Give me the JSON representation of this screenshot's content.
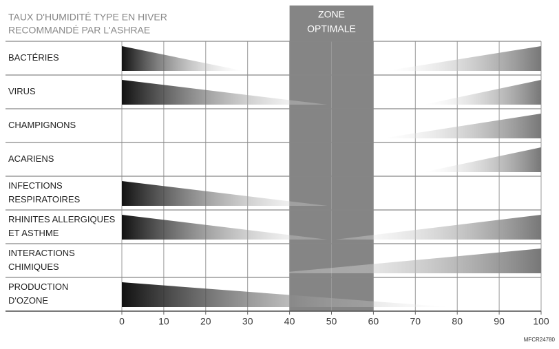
{
  "chart_data": {
    "type": "wedge",
    "title": [
      "TAUX D'HUMIDITÉ TYPE EN HIVER",
      "RECOMMANDÉ PAR L'ASHRAE"
    ],
    "zone_label": [
      "ZONE",
      "OPTIMALE"
    ],
    "zone": [
      40,
      60
    ],
    "categories": [
      [
        "BACTÉRIES"
      ],
      [
        "VIRUS"
      ],
      [
        "CHAMPIGNONS"
      ],
      [
        "ACARIENS"
      ],
      [
        "INFECTIONS",
        "RESPIRATOIRES"
      ],
      [
        "RHINITES ALLERGIQUES",
        "ET ASTHME"
      ],
      [
        "INTERACTIONS",
        "CHIMIQUES"
      ],
      [
        "PRODUCTION",
        "D'OZONE"
      ]
    ],
    "series": [
      {
        "color": "#111111",
        "values": [
          29,
          49,
          null,
          null,
          49,
          49,
          null,
          78
        ]
      },
      {
        "color": "#777777",
        "values": [
          63,
          72,
          62,
          72,
          null,
          51,
          36,
          null
        ]
      }
    ],
    "xlim": [
      0,
      100
    ],
    "xticks": [
      0,
      10,
      20,
      30,
      40,
      50,
      60,
      70,
      80,
      90,
      100
    ],
    "grid": true,
    "credit": "MFCR24780"
  }
}
